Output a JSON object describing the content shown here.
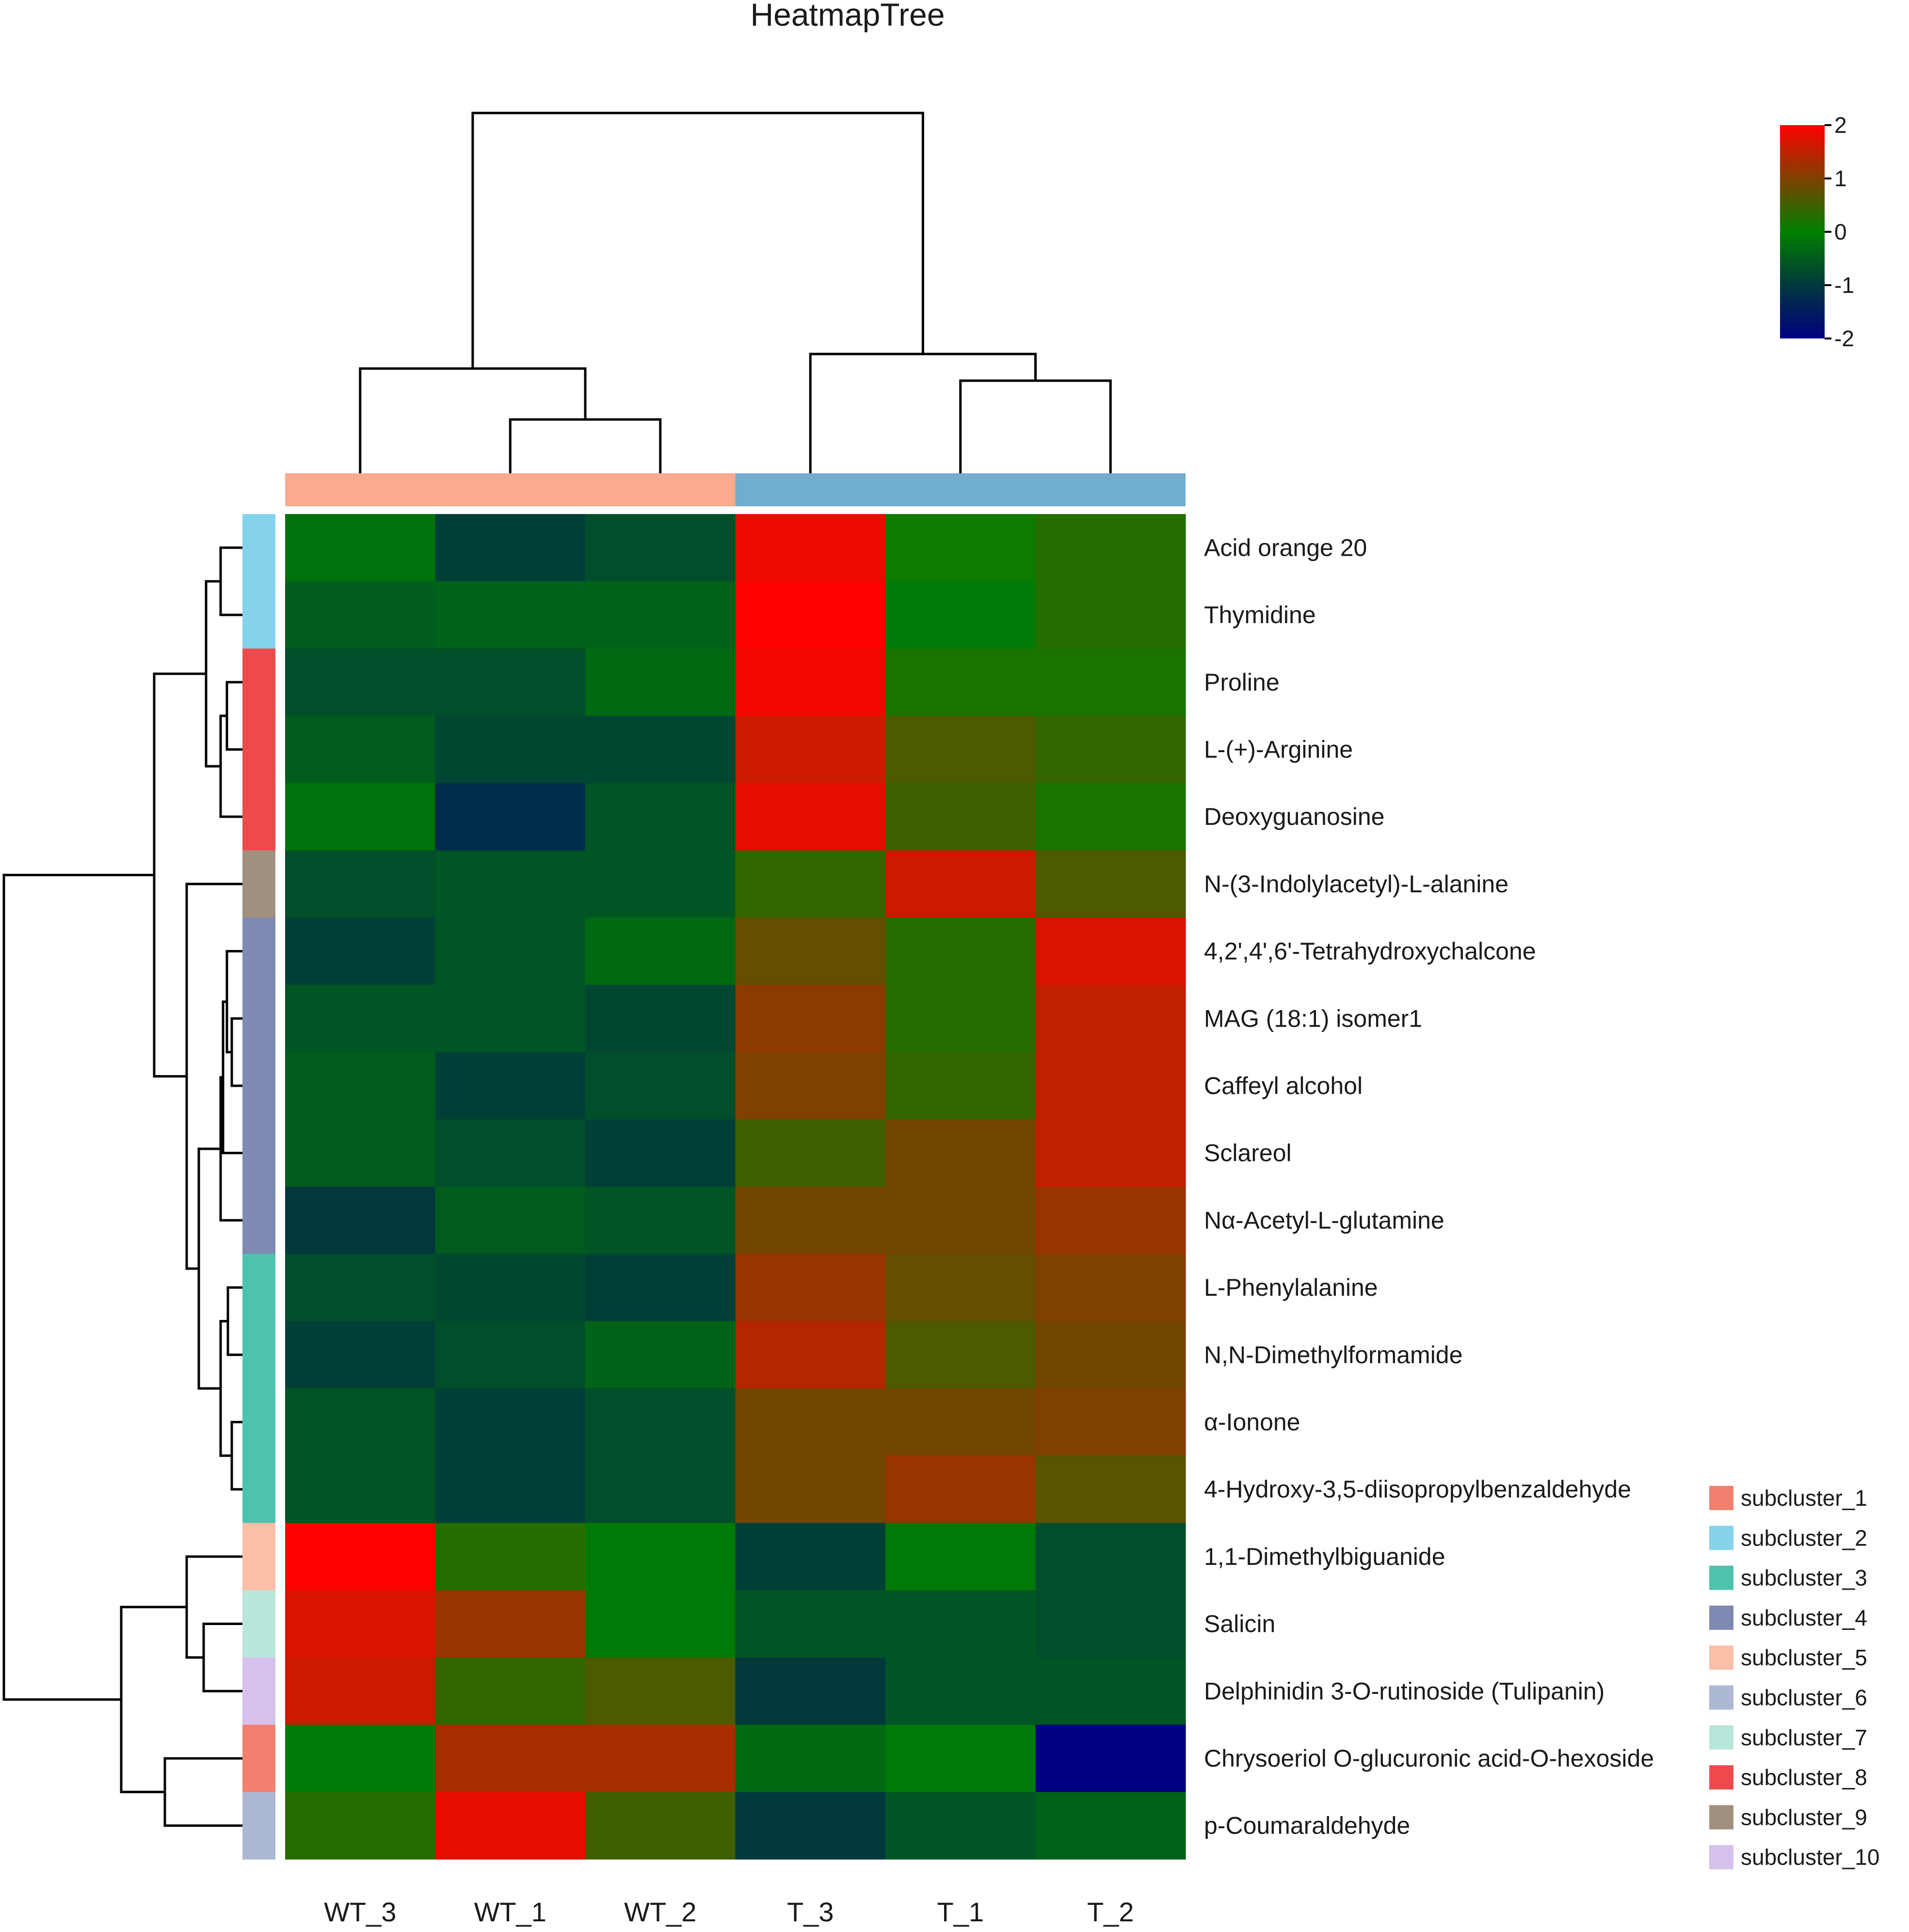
{
  "chart_data": {
    "type": "heatmap",
    "title": "HeatmapTree",
    "columns": [
      "WT_3",
      "WT_1",
      "WT_2",
      "T_3",
      "T_1",
      "T_2"
    ],
    "column_groups": [
      {
        "columns": [
          "WT_3",
          "WT_1",
          "WT_2"
        ],
        "color": "#FAAA8D"
      },
      {
        "columns": [
          "T_3",
          "T_1",
          "T_2"
        ],
        "color": "#71ADCC"
      }
    ],
    "rows": [
      "Acid orange 20",
      "Thymidine",
      "Proline",
      "L-(+)-Arginine",
      "Deoxyguanosine",
      "N-(3-Indolylacetyl)-L-alanine",
      "4,2',4',6'-Tetrahydroxychalcone",
      "MAG (18:1) isomer1",
      "Caffeyl alcohol",
      "Sclareol",
      "Nα-Acetyl-L-glutamine",
      "L-Phenylalanine",
      "N,N-Dimethylformamide",
      "α-Ionone",
      "4-Hydroxy-3,5-diisopropylbenzaldehyde",
      "1,1-Dimethylbiguanide",
      "Salicin",
      "Delphinidin 3-O-rutinoside (Tulipanin)",
      "Chrysoeriol O-glucuronic acid-O-hexoside",
      "p-Coumaraldehyde"
    ],
    "values": [
      [
        -0.2,
        -0.9,
        -0.7,
        1.85,
        0.1,
        0.3
      ],
      [
        -0.5,
        -0.4,
        -0.4,
        2.0,
        -0.1,
        0.3
      ],
      [
        -0.7,
        -0.7,
        -0.3,
        1.9,
        0.2,
        0.2
      ],
      [
        -0.5,
        -0.8,
        -0.8,
        1.6,
        0.6,
        0.4
      ],
      [
        -0.2,
        -1.2,
        -0.6,
        1.8,
        0.5,
        0.2
      ],
      [
        -0.7,
        -0.6,
        -0.6,
        0.4,
        1.6,
        0.6
      ],
      [
        -0.9,
        -0.6,
        -0.3,
        0.8,
        0.3,
        1.7
      ],
      [
        -0.6,
        -0.6,
        -0.8,
        1.1,
        0.3,
        1.5
      ],
      [
        -0.5,
        -0.9,
        -0.7,
        1.0,
        0.4,
        1.5
      ],
      [
        -0.5,
        -0.7,
        -0.9,
        0.5,
        0.9,
        1.5
      ],
      [
        -1.0,
        -0.5,
        -0.6,
        0.9,
        0.9,
        1.2
      ],
      [
        -0.7,
        -0.8,
        -0.9,
        1.2,
        0.8,
        1.0
      ],
      [
        -0.9,
        -0.7,
        -0.4,
        1.4,
        0.6,
        0.9
      ],
      [
        -0.6,
        -0.9,
        -0.7,
        0.9,
        0.9,
        1.0
      ],
      [
        -0.6,
        -0.9,
        -0.7,
        0.9,
        1.2,
        0.7
      ],
      [
        2.0,
        0.3,
        -0.1,
        -0.9,
        -0.1,
        -0.7
      ],
      [
        1.7,
        1.2,
        -0.1,
        -0.6,
        -0.6,
        -0.7
      ],
      [
        1.6,
        0.4,
        0.6,
        -1.0,
        -0.6,
        -0.6
      ],
      [
        -0.1,
        1.3,
        1.3,
        -0.3,
        -0.1,
        -2.0
      ],
      [
        0.3,
        1.8,
        0.5,
        -1.0,
        -0.6,
        -0.4
      ]
    ],
    "row_clusters": [
      "subcluster_2",
      "subcluster_2",
      "subcluster_8",
      "subcluster_8",
      "subcluster_8",
      "subcluster_9",
      "subcluster_4",
      "subcluster_4",
      "subcluster_4",
      "subcluster_4",
      "subcluster_4",
      "subcluster_3",
      "subcluster_3",
      "subcluster_3",
      "subcluster_3",
      "subcluster_5",
      "subcluster_7",
      "subcluster_10",
      "subcluster_1",
      "subcluster_6"
    ],
    "cluster_legend": [
      {
        "label": "subcluster_1",
        "color": "#F3806F"
      },
      {
        "label": "subcluster_2",
        "color": "#84D3EA"
      },
      {
        "label": "subcluster_3",
        "color": "#4EC3AC"
      },
      {
        "label": "subcluster_4",
        "color": "#7E8AB2"
      },
      {
        "label": "subcluster_5",
        "color": "#FBBEA7"
      },
      {
        "label": "subcluster_6",
        "color": "#ADB8D4"
      },
      {
        "label": "subcluster_7",
        "color": "#B7E6DA"
      },
      {
        "label": "subcluster_8",
        "color": "#EE4A4D"
      },
      {
        "label": "subcluster_9",
        "color": "#A2907F"
      },
      {
        "label": "subcluster_10",
        "color": "#D6C0EC"
      }
    ],
    "colorbar": {
      "ticks": [
        "2",
        "1",
        "0",
        "-1",
        "-2"
      ],
      "range": [
        -2,
        2
      ],
      "stops": [
        "#000080",
        "#00383C",
        "#008000",
        "#804000",
        "#FF0000"
      ]
    }
  }
}
